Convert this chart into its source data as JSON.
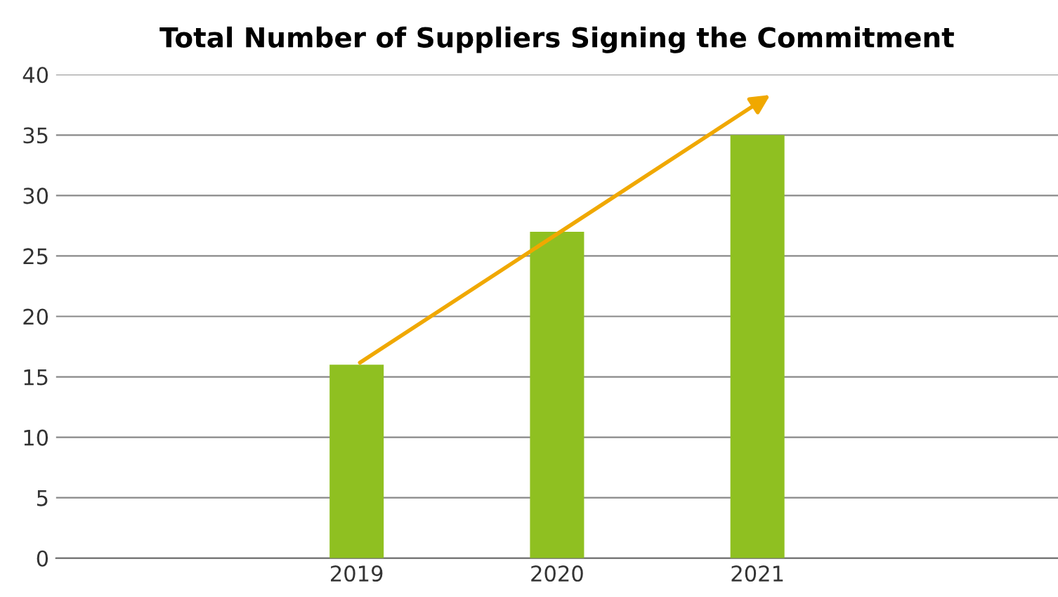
{
  "chart_data": {
    "type": "bar",
    "title": "Total Number of Suppliers Signing the Commitment",
    "categories": [
      null,
      "2019",
      "2020",
      "2021",
      null
    ],
    "series": [
      {
        "color": "#8fc021",
        "values": [
          null,
          16,
          27,
          35,
          null
        ]
      }
    ],
    "ylim": [
      0,
      40
    ],
    "yticks": [
      0,
      5,
      10,
      15,
      20,
      25,
      30,
      35,
      40
    ],
    "grid": "y"
  }
}
